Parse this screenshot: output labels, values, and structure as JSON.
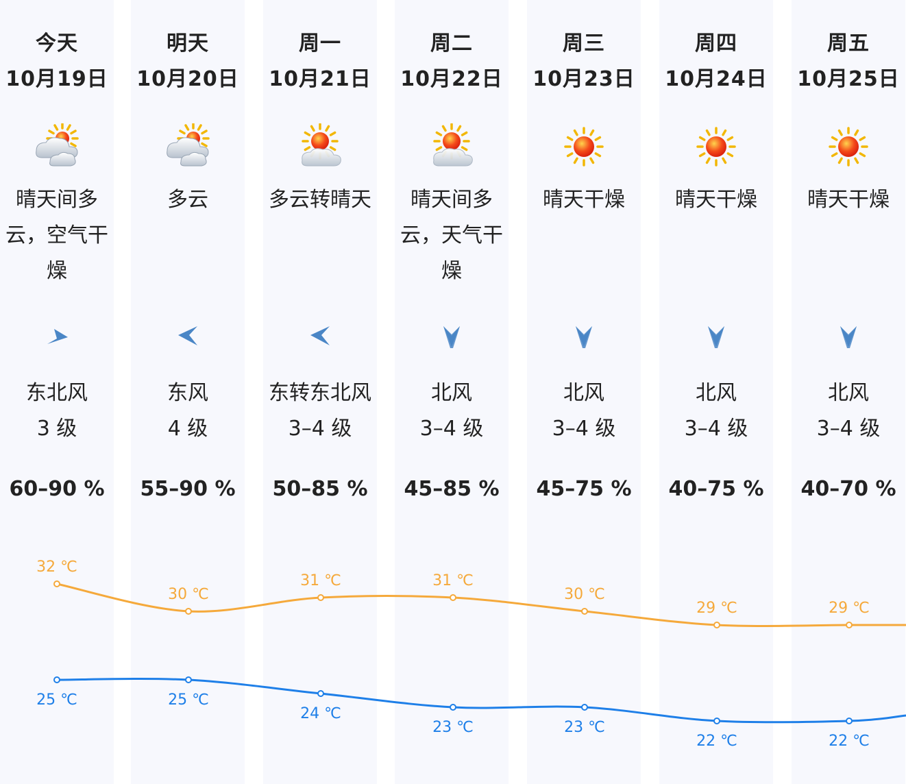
{
  "days": [
    {
      "name": "今天",
      "date": "10月19日",
      "icon": "partly-cloudy-sun-icon",
      "desc": "晴天间多云，空气干燥",
      "wind_icon": "wind-arrow-northeast-icon",
      "wind_dir": "东北风",
      "wind_level": "3 级",
      "humidity": "60–90 %"
    },
    {
      "name": "明天",
      "date": "10月20日",
      "icon": "partly-cloudy-sun-icon",
      "desc": "多云",
      "wind_icon": "wind-arrow-east-icon",
      "wind_dir": "东风",
      "wind_level": "4 级",
      "humidity": "55–90 %"
    },
    {
      "name": "周一",
      "date": "10月21日",
      "icon": "cloudy-to-sunny-icon",
      "desc": "多云转晴天",
      "wind_icon": "wind-arrow-east-icon",
      "wind_dir": "东转东北风",
      "wind_level": "3–4 级",
      "humidity": "50–85 %"
    },
    {
      "name": "周二",
      "date": "10月22日",
      "icon": "cloudy-to-sunny-icon",
      "desc": "晴天间多云，天气干燥",
      "wind_icon": "wind-arrow-north-icon",
      "wind_dir": "北风",
      "wind_level": "3–4 级",
      "humidity": "45–85 %"
    },
    {
      "name": "周三",
      "date": "10月23日",
      "icon": "sunny-icon",
      "desc": "晴天干燥",
      "wind_icon": "wind-arrow-north-icon",
      "wind_dir": "北风",
      "wind_level": "3–4 级",
      "humidity": "45–75 %"
    },
    {
      "name": "周四",
      "date": "10月24日",
      "icon": "sunny-icon",
      "desc": "晴天干燥",
      "wind_icon": "wind-arrow-north-icon",
      "wind_dir": "北风",
      "wind_level": "3–4 级",
      "humidity": "40–75 %"
    },
    {
      "name": "周五",
      "date": "10月25日",
      "icon": "sunny-icon",
      "desc": "晴天干燥",
      "wind_icon": "wind-arrow-north-icon",
      "wind_dir": "北风",
      "wind_level": "3–4 级",
      "humidity": "40–70 %"
    }
  ],
  "chart_data": {
    "type": "line",
    "categories": [
      "今天",
      "明天",
      "周一",
      "周二",
      "周三",
      "周四",
      "周五"
    ],
    "series": [
      {
        "values": [
          32,
          30,
          31,
          31,
          30,
          29,
          29
        ],
        "labels": [
          "32 ℃",
          "30 ℃",
          "31 ℃",
          "31 ℃",
          "30 ℃",
          "29 ℃",
          "29 ℃"
        ],
        "color": "#f5a93b"
      },
      {
        "values": [
          25,
          25,
          24,
          23,
          23,
          22,
          22
        ],
        "labels": [
          "25 ℃",
          "25 ℃",
          "24 ℃",
          "23 ℃",
          "23 ℃",
          "22 ℃",
          "22 ℃"
        ],
        "color": "#1e7fe8"
      }
    ]
  },
  "colors": {
    "high_temp": "#f5a93b",
    "low_temp": "#1e7fe8",
    "column_bg": "#f7f8fd",
    "wind_arrow": "#4a86c6"
  }
}
